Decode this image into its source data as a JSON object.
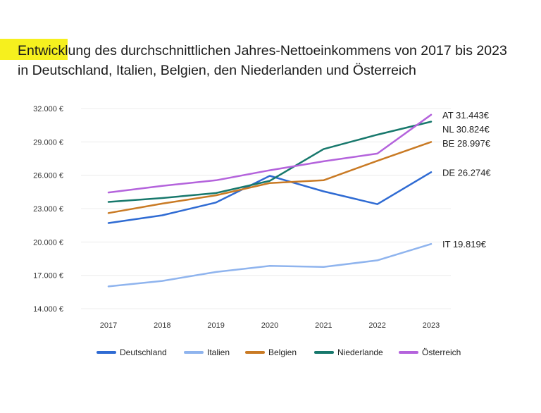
{
  "chart_data": {
    "type": "line",
    "title": "Entwicklung des durchschnittlichen Jahres-Nettoeinkommens von 2017 bis 2023 in Deutschland, Italien, Belgien, den Niederlanden und Österreich",
    "xlabel": "",
    "ylabel": "",
    "x": [
      "2017",
      "2018",
      "2019",
      "2020",
      "2021",
      "2022",
      "2023"
    ],
    "ylim": [
      14000,
      32000
    ],
    "yticks": [
      32000,
      29000,
      26000,
      23000,
      20000,
      17000,
      14000
    ],
    "ytick_labels": [
      "32.000 €",
      "29.000 €",
      "26.000 €",
      "23.000 €",
      "20.000 €",
      "17.000 €",
      "14.000 €"
    ],
    "grid": true,
    "legend_position": "bottom",
    "series": [
      {
        "name": "Deutschland",
        "color": "#2f6bd3",
        "values": [
          21700,
          22400,
          23550,
          25950,
          24550,
          23400,
          26274
        ],
        "end_label": "DE 26.274€"
      },
      {
        "name": "Italien",
        "color": "#8fb4ee",
        "values": [
          16000,
          16500,
          17300,
          17850,
          17750,
          18350,
          19819
        ],
        "end_label": "IT 19.819€"
      },
      {
        "name": "Belgien",
        "color": "#c97a24",
        "values": [
          22600,
          23450,
          24200,
          25300,
          25550,
          27300,
          28997
        ],
        "end_label": "BE 28.997€"
      },
      {
        "name": "Niederlande",
        "color": "#17786c",
        "values": [
          23600,
          23950,
          24400,
          25500,
          28350,
          29650,
          30824
        ],
        "end_label": "NL 30.824€"
      },
      {
        "name": "Österreich",
        "color": "#b463dc",
        "values": [
          24450,
          25050,
          25550,
          26450,
          27250,
          27950,
          31443
        ],
        "end_label": "AT 31.443€"
      }
    ]
  }
}
